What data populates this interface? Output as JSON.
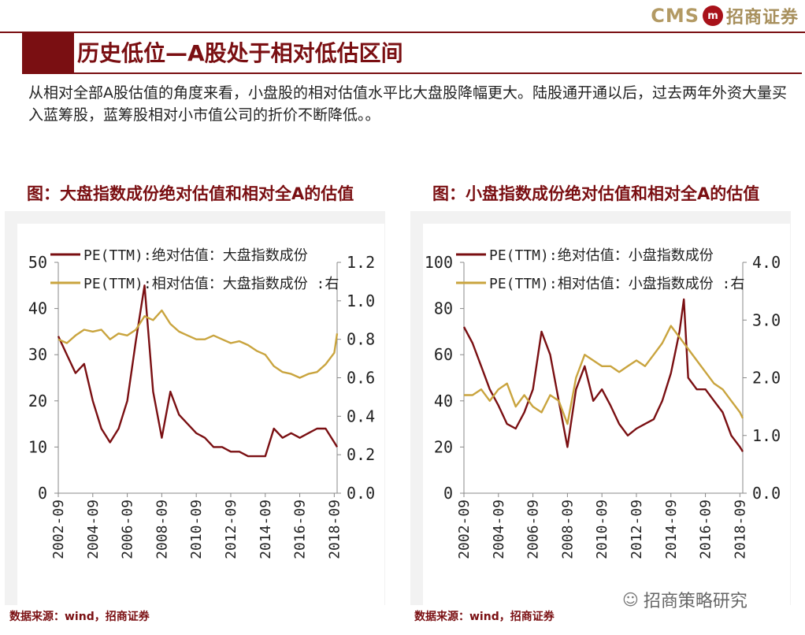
{
  "brand": {
    "cms": "CMS",
    "logo_glyph": "m",
    "name_cn": "招商证券"
  },
  "page_title": "历史低位—A股处于相对低估区间",
  "summary": "从相对全部A股估值的角度来看，小盘股的相对估值水平比大盘股降幅更大。陆股通开通以后，过去两年外资大量买入蓝筹股，蓝筹股相对小市值公司的折价不断降低。。",
  "footer_brand": "招商策略研究",
  "colors": {
    "primary": "#7a0f12",
    "secondary": "#c9a43e",
    "accent": "#a8121a"
  },
  "chart_data": [
    {
      "type": "line",
      "title": "图：大盘指数成份绝对估值和相对全A的估值",
      "source": "数据来源：wind，招商证券",
      "x": [
        "2002-09",
        "2003-03",
        "2003-09",
        "2004-03",
        "2004-09",
        "2005-03",
        "2005-09",
        "2006-03",
        "2006-09",
        "2007-03",
        "2007-09",
        "2008-03",
        "2008-09",
        "2009-03",
        "2009-09",
        "2010-03",
        "2010-09",
        "2011-03",
        "2011-09",
        "2012-03",
        "2012-09",
        "2013-03",
        "2013-09",
        "2014-03",
        "2014-09",
        "2015-03",
        "2015-09",
        "2016-03",
        "2016-09",
        "2017-03",
        "2017-09",
        "2018-03",
        "2018-09",
        "2018-11"
      ],
      "xticks": [
        "2002-09",
        "2004-09",
        "2006-09",
        "2008-09",
        "2010-09",
        "2012-09",
        "2014-09",
        "2016-09",
        "2018-09"
      ],
      "left_axis": {
        "ylim": [
          0,
          50
        ],
        "ticks": [
          "0",
          "10",
          "20",
          "30",
          "40",
          "50"
        ]
      },
      "right_axis": {
        "ylim": [
          0.0,
          1.2
        ],
        "ticks": [
          "0.0",
          "0.2",
          "0.4",
          "0.6",
          "0.8",
          "1.0",
          "1.2"
        ]
      },
      "series": [
        {
          "name": "PE(TTM):绝对估值：大盘指数成份",
          "axis": "left",
          "color": "#7a0f12",
          "values": [
            34,
            30,
            26,
            28,
            20,
            14,
            11,
            14,
            20,
            33,
            45,
            22,
            12,
            22,
            17,
            15,
            13,
            12,
            10,
            10,
            9,
            9,
            8,
            8,
            8,
            14,
            12,
            13,
            12,
            13,
            14,
            14,
            11,
            10
          ]
        },
        {
          "name": "PE(TTM):相对估值：大盘指数成份 :右",
          "axis": "right",
          "color": "#c9a43e",
          "values": [
            0.8,
            0.78,
            0.82,
            0.85,
            0.84,
            0.85,
            0.8,
            0.83,
            0.82,
            0.85,
            0.92,
            0.9,
            0.95,
            0.88,
            0.84,
            0.82,
            0.8,
            0.8,
            0.82,
            0.8,
            0.78,
            0.79,
            0.77,
            0.74,
            0.72,
            0.66,
            0.63,
            0.62,
            0.6,
            0.62,
            0.63,
            0.67,
            0.73,
            0.83
          ]
        }
      ]
    },
    {
      "type": "line",
      "title": "图：小盘指数成份绝对估值和相对全A的估值",
      "source": "数据来源：wind，招商证券",
      "x": [
        "2002-09",
        "2003-03",
        "2003-09",
        "2004-03",
        "2004-09",
        "2005-03",
        "2005-09",
        "2006-03",
        "2006-09",
        "2007-03",
        "2007-09",
        "2008-03",
        "2008-09",
        "2009-03",
        "2009-09",
        "2010-03",
        "2010-09",
        "2011-03",
        "2011-09",
        "2012-03",
        "2012-09",
        "2013-03",
        "2013-09",
        "2014-03",
        "2014-09",
        "2015-03",
        "2015-06",
        "2015-09",
        "2016-03",
        "2016-09",
        "2017-03",
        "2017-09",
        "2018-03",
        "2018-09",
        "2018-11"
      ],
      "xticks": [
        "2002-09",
        "2004-09",
        "2006-09",
        "2008-09",
        "2010-09",
        "2012-09",
        "2014-09",
        "2016-09",
        "2018-09"
      ],
      "left_axis": {
        "ylim": [
          0,
          100
        ],
        "ticks": [
          "0",
          "20",
          "40",
          "60",
          "80",
          "100"
        ]
      },
      "right_axis": {
        "ylim": [
          0.0,
          4.0
        ],
        "ticks": [
          "0.0",
          "1.0",
          "2.0",
          "3.0",
          "4.0"
        ]
      },
      "series": [
        {
          "name": "PE(TTM):绝对估值：小盘指数成份",
          "axis": "left",
          "color": "#7a0f12",
          "values": [
            72,
            65,
            55,
            45,
            38,
            30,
            28,
            35,
            45,
            70,
            60,
            40,
            20,
            45,
            55,
            40,
            45,
            38,
            30,
            25,
            28,
            30,
            32,
            40,
            52,
            70,
            84,
            50,
            45,
            45,
            40,
            35,
            25,
            20,
            18
          ]
        },
        {
          "name": "PE(TTM):相对估值：小盘指数成份 :右",
          "axis": "right",
          "color": "#c9a43e",
          "values": [
            1.7,
            1.7,
            1.8,
            1.6,
            1.8,
            1.9,
            1.5,
            1.7,
            1.5,
            1.4,
            1.7,
            1.6,
            1.2,
            2.0,
            2.4,
            2.3,
            2.2,
            2.2,
            2.1,
            2.2,
            2.3,
            2.2,
            2.4,
            2.6,
            2.9,
            2.7,
            2.6,
            2.5,
            2.3,
            2.1,
            1.9,
            1.8,
            1.6,
            1.4,
            1.3
          ]
        }
      ]
    }
  ]
}
